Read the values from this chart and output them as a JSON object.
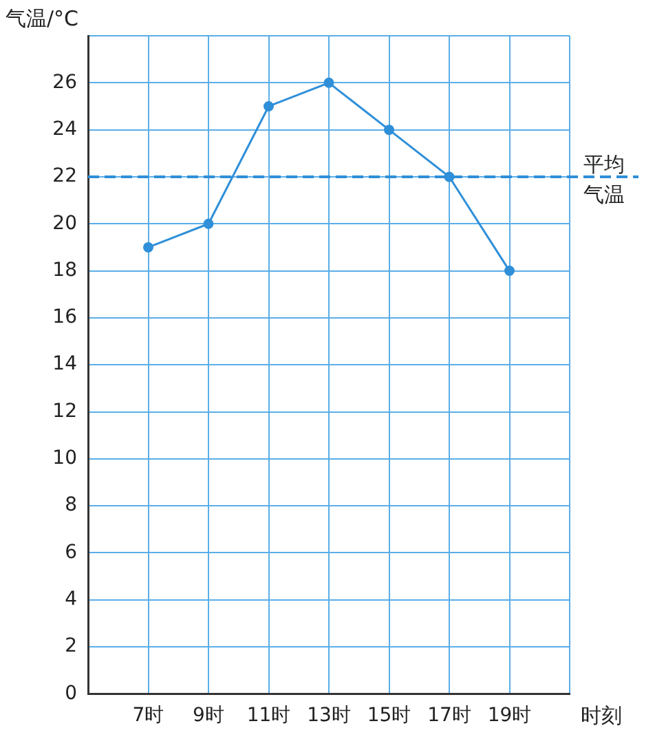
{
  "chart_data": {
    "type": "line",
    "xlabel": "时刻",
    "ylabel": "气温/°C",
    "categories": [
      null,
      "7时",
      "9时",
      "11时",
      "13时",
      "15时",
      "17时",
      "19时",
      null
    ],
    "series": [
      {
        "color": "#2f8fd8",
        "values": [
          null,
          19,
          20,
          25,
          26,
          24,
          22,
          18,
          null
        ]
      }
    ],
    "ylim": [
      0,
      28
    ],
    "yticks": [
      0,
      2,
      4,
      6,
      8,
      10,
      12,
      14,
      16,
      18,
      20,
      22,
      24,
      26,
      {
        "value": 28,
        "label": null
      }
    ],
    "grid": true,
    "legend": false,
    "marker": "circle",
    "line_style": "solid",
    "ref_lines": [
      {
        "axis": "y",
        "value": 22,
        "label": "平均气温",
        "color": "#2f8fd8",
        "line_style": "dashed"
      }
    ]
  }
}
